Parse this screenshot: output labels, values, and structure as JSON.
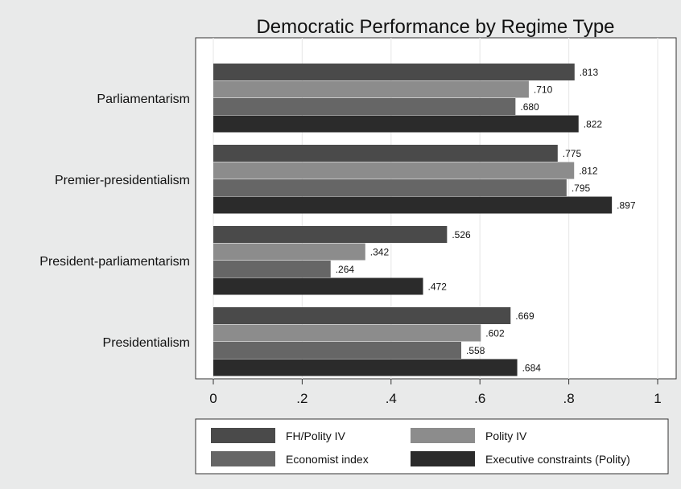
{
  "chart_data": {
    "type": "bar",
    "orientation": "horizontal",
    "title": "Democratic Performance by Regime Type",
    "categories": [
      "Parliamentarism",
      "Premier-presidentialism",
      "President-parliamentarism",
      "Presidentialism"
    ],
    "series": [
      {
        "name": "FH/Polity IV",
        "color": "#4a4a4a",
        "values": [
          0.813,
          0.775,
          0.526,
          0.669
        ],
        "labels": [
          ".813",
          ".775",
          ".526",
          ".669"
        ]
      },
      {
        "name": "Polity IV",
        "color": "#8c8c8c",
        "values": [
          0.71,
          0.812,
          0.342,
          0.602
        ],
        "labels": [
          ".710",
          ".812",
          ".342",
          ".602"
        ]
      },
      {
        "name": "Economist index",
        "color": "#666666",
        "values": [
          0.68,
          0.795,
          0.264,
          0.558
        ],
        "labels": [
          ".680",
          ".795",
          ".264",
          ".558"
        ]
      },
      {
        "name": "Executive constraints (Polity)",
        "color": "#2b2b2b",
        "values": [
          0.822,
          0.897,
          0.472,
          0.684
        ],
        "labels": [
          ".822",
          ".897",
          ".472",
          ".684"
        ]
      }
    ],
    "xlim": [
      0,
      1
    ],
    "xticks": [
      0,
      0.2,
      0.4,
      0.6,
      0.8,
      1
    ],
    "xtick_labels": [
      "0",
      ".2",
      ".4",
      ".6",
      ".8",
      "1"
    ],
    "grid": true,
    "legend_position": "bottom"
  }
}
